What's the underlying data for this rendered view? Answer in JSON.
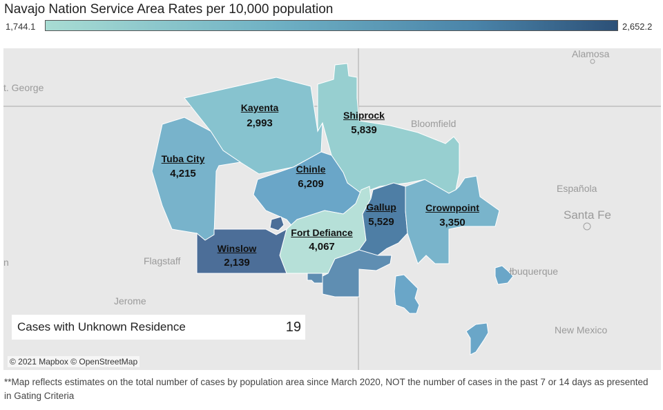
{
  "title": "Navajo Nation Service Area Rates per 10,000 population",
  "legend": {
    "min": "1,744.1",
    "max": "2,652.2",
    "colors": [
      "#a8dcd3",
      "#6fb1c4",
      "#4a84a9",
      "#2c5077"
    ]
  },
  "basemap_labels": {
    "alamosa": "Alamosa",
    "st_george": "t. George",
    "bloomfield": "Bloomfield",
    "espanola": "Española",
    "santa_fe": "Santa Fe",
    "flagstaff": "Flagstaff",
    "albuquerque": "lbuquerque",
    "jerome": "Jerome",
    "new_mexico": "New Mexico",
    "left_edge": "n"
  },
  "service_areas": [
    {
      "key": "kayenta",
      "name": "Kayenta",
      "rate": "2,993",
      "color": "#87c3cf"
    },
    {
      "key": "shiprock",
      "name": "Shiprock",
      "rate": "5,839",
      "color": "#97cfd0"
    },
    {
      "key": "tuba_city",
      "name": "Tuba City",
      "rate": "4,215",
      "color": "#78b3cb"
    },
    {
      "key": "chinle",
      "name": "Chinle",
      "rate": "6,209",
      "color": "#6aa6c8"
    },
    {
      "key": "gallup",
      "name": "Gallup",
      "rate": "5,529",
      "color": "#4e7ea5"
    },
    {
      "key": "crownpoint",
      "name": "Crownpoint",
      "rate": "3,350",
      "color": "#79b4cb"
    },
    {
      "key": "fort_defiance",
      "name": "Fort Defiance",
      "rate": "4,067",
      "color": "#b6e0d8"
    },
    {
      "key": "winslow",
      "name": "Winslow",
      "rate": "2,139",
      "color": "#4c6e98"
    }
  ],
  "unknown": {
    "label": "Cases with Unknown Residence",
    "count": "19"
  },
  "attribution": "© 2021 Mapbox © OpenStreetMap",
  "footnote": "**Map reflects estimates on the total number of cases by population area since March 2020, NOT the number of cases in the past 7 or 14 days as presented in Gating Criteria"
}
